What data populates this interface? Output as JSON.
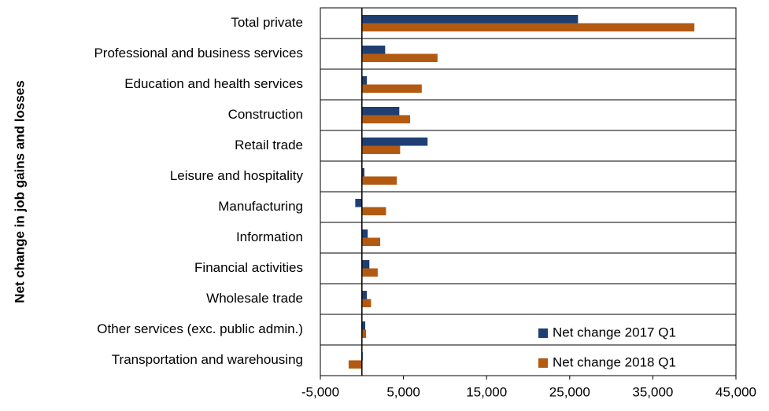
{
  "chart_data": {
    "type": "hbar",
    "y_label": "Net change in job gains and losses",
    "categories": [
      "Total private",
      "Professional and business services",
      "Education and health services",
      "Construction",
      "Retail trade",
      "Leisure and hospitality",
      "Manufacturing",
      "Information",
      "Financial activities",
      "Wholesale trade",
      "Other services (exc. public admin.)",
      "Transportation and warehousing"
    ],
    "series": [
      {
        "name": "Net change 2017 Q1",
        "color": "#1f3f73",
        "values": [
          26000,
          2800,
          600,
          4500,
          7900,
          300,
          -800,
          700,
          900,
          600,
          400,
          100
        ]
      },
      {
        "name": "Net change 2018 Q1",
        "color": "#b35a12",
        "values": [
          40000,
          9100,
          7200,
          5800,
          4600,
          4200,
          2900,
          2200,
          1900,
          1100,
          500,
          -1600
        ]
      }
    ],
    "xlim": [
      -5000,
      45000
    ],
    "xticks": [
      {
        "value": -5000,
        "label": "-5,000"
      },
      {
        "value": 5000,
        "label": "5,000"
      },
      {
        "value": 15000,
        "label": "15,000"
      },
      {
        "value": 25000,
        "label": "25,000"
      },
      {
        "value": 35000,
        "label": "35,000"
      },
      {
        "value": 45000,
        "label": "45,000"
      }
    ],
    "legend": "lower right"
  }
}
